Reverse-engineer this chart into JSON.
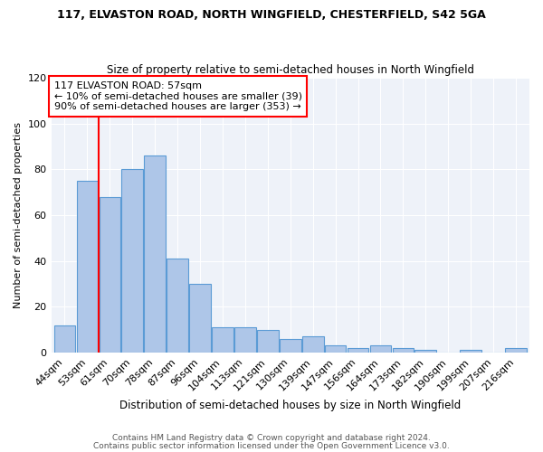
{
  "title_line1": "117, ELVASTON ROAD, NORTH WINGFIELD, CHESTERFIELD, S42 5GA",
  "title_line2": "Size of property relative to semi-detached houses in North Wingfield",
  "categories": [
    "44sqm",
    "53sqm",
    "61sqm",
    "70sqm",
    "78sqm",
    "87sqm",
    "96sqm",
    "104sqm",
    "113sqm",
    "121sqm",
    "130sqm",
    "139sqm",
    "147sqm",
    "156sqm",
    "164sqm",
    "173sqm",
    "182sqm",
    "190sqm",
    "199sqm",
    "207sqm",
    "216sqm"
  ],
  "values": [
    12,
    75,
    68,
    80,
    86,
    41,
    30,
    11,
    11,
    10,
    6,
    7,
    3,
    2,
    3,
    2,
    1,
    0,
    1,
    0,
    2
  ],
  "bar_color": "#aec6e8",
  "bar_edge_color": "#5b9bd5",
  "property_label": "117 ELVASTON ROAD: 57sqm",
  "annotation_line2": "← 10% of semi-detached houses are smaller (39)",
  "annotation_line3": "90% of semi-detached houses are larger (353) →",
  "xlabel": "Distribution of semi-detached houses by size in North Wingfield",
  "ylabel": "Number of semi-detached properties",
  "footer1": "Contains HM Land Registry data © Crown copyright and database right 2024.",
  "footer2": "Contains public sector information licensed under the Open Government Licence v3.0.",
  "ylim": [
    0,
    120
  ],
  "yticks": [
    0,
    20,
    40,
    60,
    80,
    100,
    120
  ],
  "bg_color": "#eef2f9",
  "red_line_x": 1.52
}
